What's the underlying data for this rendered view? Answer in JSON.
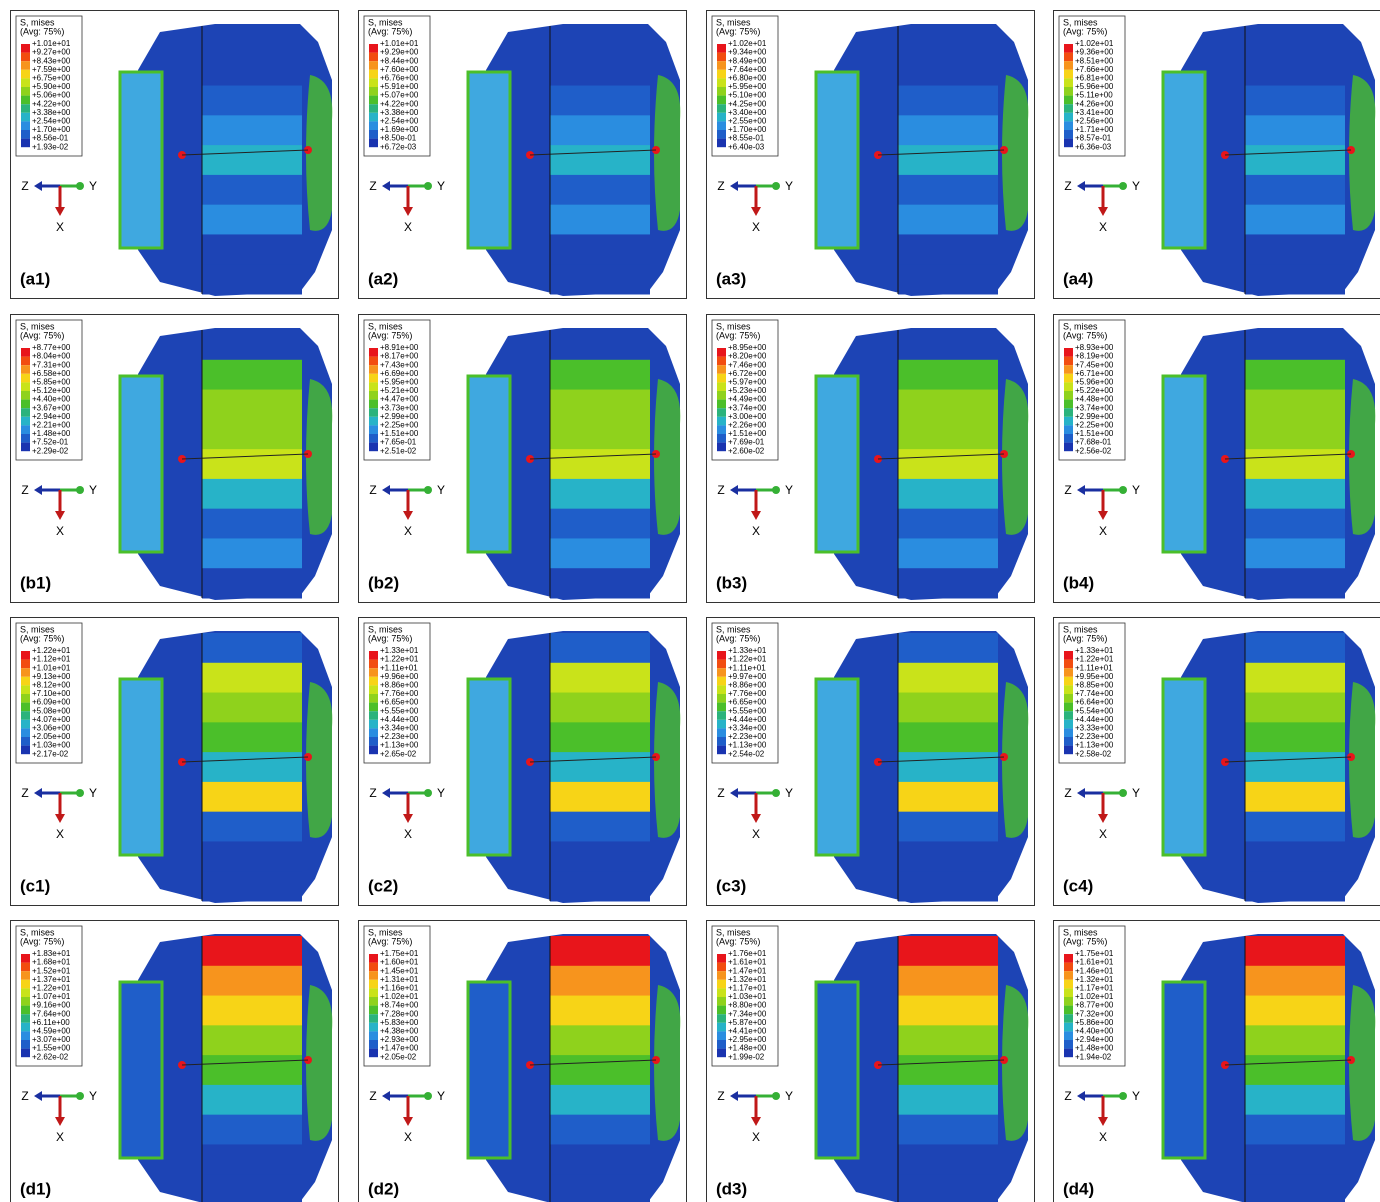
{
  "legend_title": "S, mises",
  "legend_subtitle": "(Avg: 75%)",
  "axes": {
    "z": "Z",
    "y": "Y",
    "x": "X"
  },
  "panels": [
    {
      "label": "(a1)",
      "legend_values": [
        "+1.01e+01",
        "+9.27e+00",
        "+8.43e+00",
        "+7.59e+00",
        "+6.75e+00",
        "+5.90e+00",
        "+5.06e+00",
        "+4.22e+00",
        "+3.38e+00",
        "+2.54e+00",
        "+1.70e+00",
        "+8.56e-01",
        "+1.93e-02"
      ]
    },
    {
      "label": "(a2)",
      "legend_values": [
        "+1.01e+01",
        "+9.29e+00",
        "+8.44e+00",
        "+7.60e+00",
        "+6.76e+00",
        "+5.91e+00",
        "+5.07e+00",
        "+4.22e+00",
        "+3.38e+00",
        "+2.54e+00",
        "+1.69e+00",
        "+8.50e-01",
        "+6.72e-03"
      ]
    },
    {
      "label": "(a3)",
      "legend_values": [
        "+1.02e+01",
        "+9.34e+00",
        "+8.49e+00",
        "+7.64e+00",
        "+6.80e+00",
        "+5.95e+00",
        "+5.10e+00",
        "+4.25e+00",
        "+3.40e+00",
        "+2.55e+00",
        "+1.70e+00",
        "+8.55e-01",
        "+6.40e-03"
      ]
    },
    {
      "label": "(a4)",
      "legend_values": [
        "+1.02e+01",
        "+9.36e+00",
        "+8.51e+00",
        "+7.66e+00",
        "+6.81e+00",
        "+5.96e+00",
        "+5.11e+00",
        "+4.26e+00",
        "+3.41e+00",
        "+2.56e+00",
        "+1.71e+00",
        "+8.57e-01",
        "+6.36e-03"
      ]
    },
    {
      "label": "(b1)",
      "legend_values": [
        "+8.77e+00",
        "+8.04e+00",
        "+7.31e+00",
        "+6.58e+00",
        "+5.85e+00",
        "+5.12e+00",
        "+4.40e+00",
        "+3.67e+00",
        "+2.94e+00",
        "+2.21e+00",
        "+1.48e+00",
        "+7.52e-01",
        "+2.29e-02"
      ]
    },
    {
      "label": "(b2)",
      "legend_values": [
        "+8.91e+00",
        "+8.17e+00",
        "+7.43e+00",
        "+6.69e+00",
        "+5.95e+00",
        "+5.21e+00",
        "+4.47e+00",
        "+3.73e+00",
        "+2.99e+00",
        "+2.25e+00",
        "+1.51e+00",
        "+7.65e-01",
        "+2.51e-02"
      ]
    },
    {
      "label": "(b3)",
      "legend_values": [
        "+8.95e+00",
        "+8.20e+00",
        "+7.46e+00",
        "+6.72e+00",
        "+5.97e+00",
        "+5.23e+00",
        "+4.49e+00",
        "+3.74e+00",
        "+3.00e+00",
        "+2.26e+00",
        "+1.51e+00",
        "+7.69e-01",
        "+2.60e-02"
      ]
    },
    {
      "label": "(b4)",
      "legend_values": [
        "+8.93e+00",
        "+8.19e+00",
        "+7.45e+00",
        "+6.71e+00",
        "+5.96e+00",
        "+5.22e+00",
        "+4.48e+00",
        "+3.74e+00",
        "+2.99e+00",
        "+2.25e+00",
        "+1.51e+00",
        "+7.68e-01",
        "+2.56e-02"
      ]
    },
    {
      "label": "(c1)",
      "legend_values": [
        "+1.22e+01",
        "+1.12e+01",
        "+1.01e+01",
        "+9.13e+00",
        "+8.12e+00",
        "+7.10e+00",
        "+6.09e+00",
        "+5.08e+00",
        "+4.07e+00",
        "+3.06e+00",
        "+2.05e+00",
        "+1.03e+00",
        "+2.17e-02"
      ]
    },
    {
      "label": "(c2)",
      "legend_values": [
        "+1.33e+01",
        "+1.22e+01",
        "+1.11e+01",
        "+9.96e+00",
        "+8.86e+00",
        "+7.76e+00",
        "+6.65e+00",
        "+5.55e+00",
        "+4.44e+00",
        "+3.34e+00",
        "+2.23e+00",
        "+1.13e+00",
        "+2.65e-02"
      ]
    },
    {
      "label": "(c3)",
      "legend_values": [
        "+1.33e+01",
        "+1.22e+01",
        "+1.11e+01",
        "+9.97e+00",
        "+8.86e+00",
        "+7.76e+00",
        "+6.65e+00",
        "+5.55e+00",
        "+4.44e+00",
        "+3.34e+00",
        "+2.23e+00",
        "+1.13e+00",
        "+2.54e-02"
      ]
    },
    {
      "label": "(c4)",
      "legend_values": [
        "+1.33e+01",
        "+1.22e+01",
        "+1.11e+01",
        "+9.95e+00",
        "+8.85e+00",
        "+7.74e+00",
        "+6.64e+00",
        "+5.54e+00",
        "+4.44e+00",
        "+3.33e+00",
        "+2.23e+00",
        "+1.13e+00",
        "+2.58e-02"
      ]
    },
    {
      "label": "(d1)",
      "legend_values": [
        "+1.83e+01",
        "+1.68e+01",
        "+1.52e+01",
        "+1.37e+01",
        "+1.22e+01",
        "+1.07e+01",
        "+9.16e+00",
        "+7.64e+00",
        "+6.11e+00",
        "+4.59e+00",
        "+3.07e+00",
        "+1.55e+00",
        "+2.62e-02"
      ]
    },
    {
      "label": "(d2)",
      "legend_values": [
        "+1.75e+01",
        "+1.60e+01",
        "+1.45e+01",
        "+1.31e+01",
        "+1.16e+01",
        "+1.02e+01",
        "+8.74e+00",
        "+7.28e+00",
        "+5.83e+00",
        "+4.38e+00",
        "+2.93e+00",
        "+1.47e+00",
        "+2.05e-02"
      ]
    },
    {
      "label": "(d3)",
      "legend_values": [
        "+1.76e+01",
        "+1.61e+01",
        "+1.47e+01",
        "+1.32e+01",
        "+1.17e+01",
        "+1.03e+01",
        "+8.80e+00",
        "+7.34e+00",
        "+5.87e+00",
        "+4.41e+00",
        "+2.95e+00",
        "+1.48e+00",
        "+1.99e-02"
      ]
    },
    {
      "label": "(d4)",
      "legend_values": [
        "+1.75e+01",
        "+1.61e+01",
        "+1.46e+01",
        "+1.32e+01",
        "+1.17e+01",
        "+1.02e+01",
        "+8.77e+00",
        "+7.32e+00",
        "+5.86e+00",
        "+4.40e+00",
        "+2.94e+00",
        "+1.48e+00",
        "+1.94e-02"
      ]
    }
  ]
}
